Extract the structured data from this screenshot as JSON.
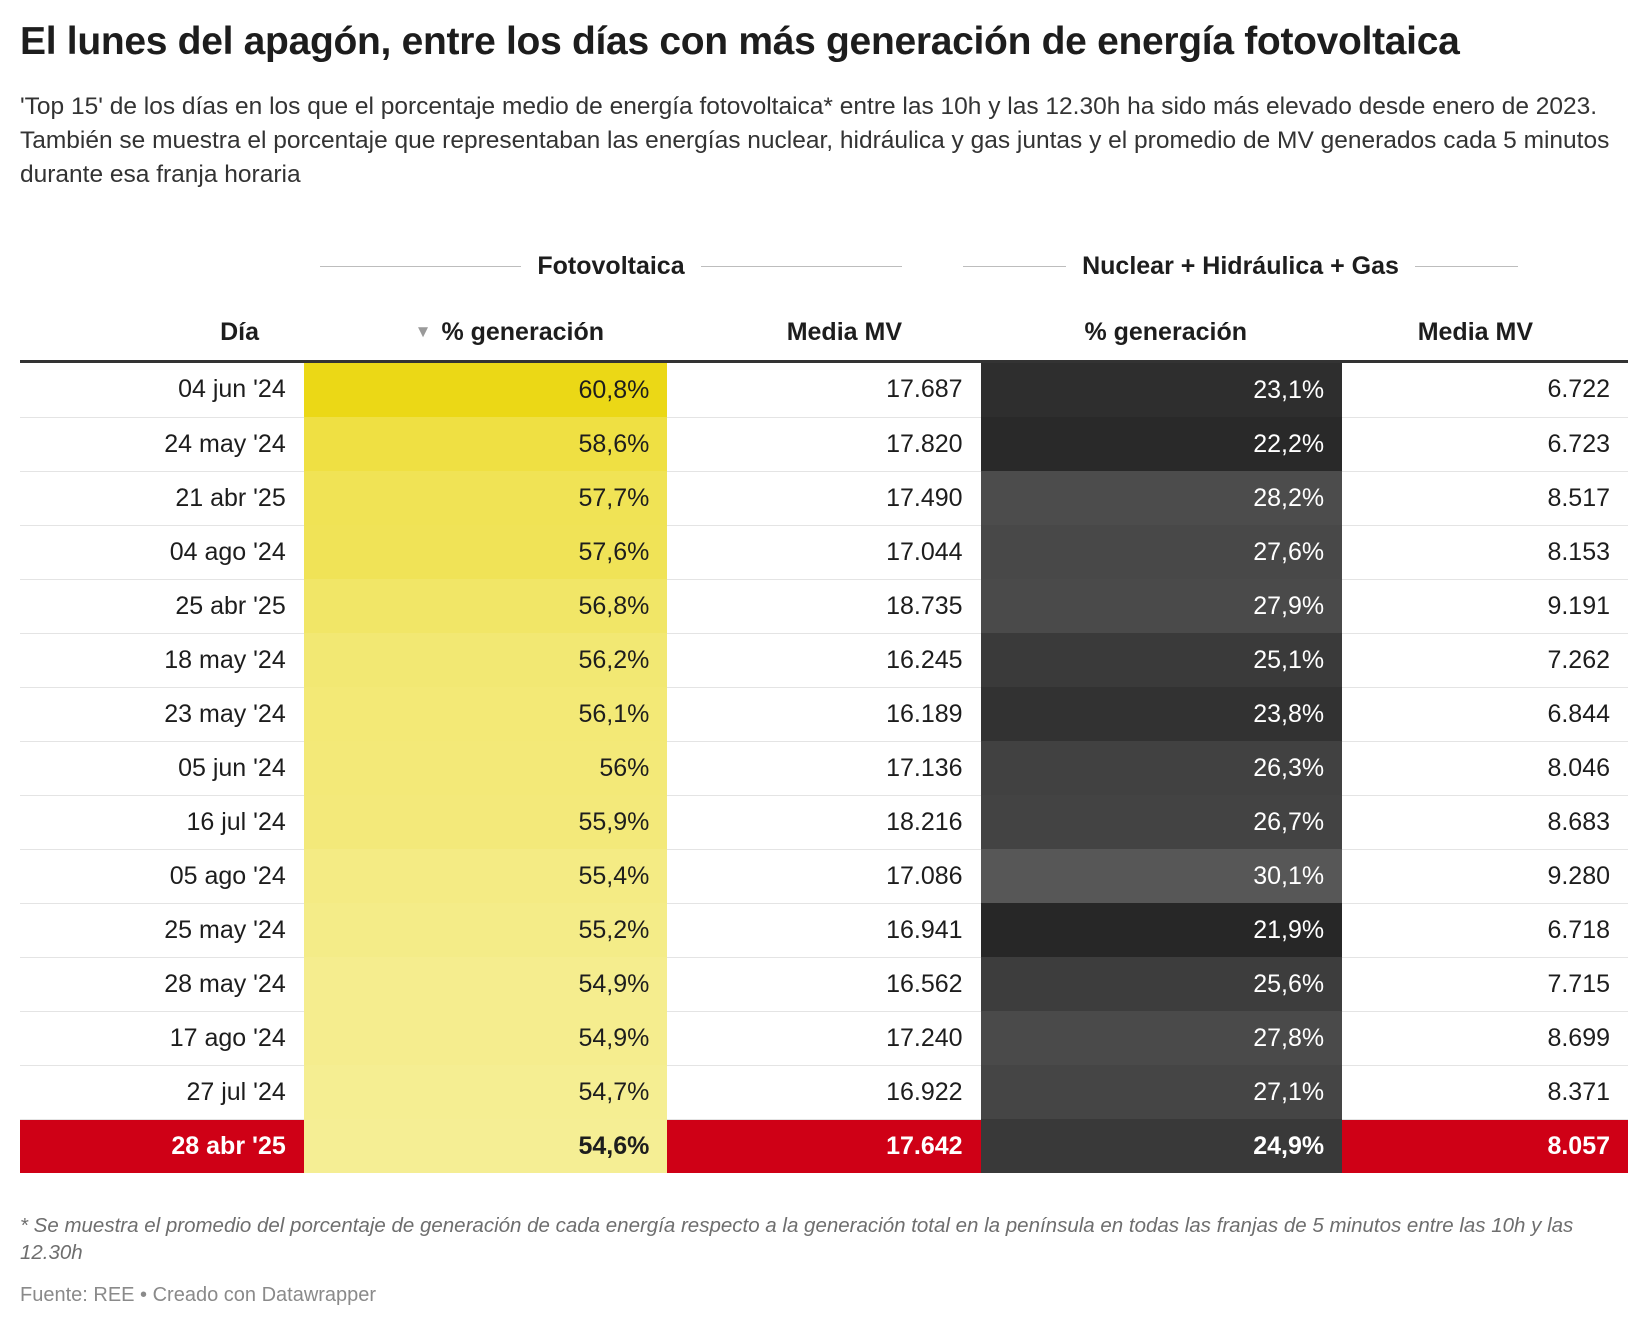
{
  "title": "El lunes del apagón, entre los días con más generación de energía fotovoltaica",
  "subtitle": "'Top 15' de los días en los que el porcentaje medio de energía fotovoltaica* entre las 10h y las 12.30h ha sido más elevado desde enero de 2023. También se muestra el porcentaje que representaban las energías nuclear, hidráulica y gas juntas y el promedio de MV generados cada 5 minutos durante esa franja horaria",
  "groups": {
    "solar": "Fotovoltaica",
    "other": "Nuclear + Hidráulica + Gas"
  },
  "columns": {
    "day": "Día",
    "solar_pct": "% generación",
    "solar_mv": "Media MV",
    "other_pct": "% generación",
    "other_mv": "Media MV",
    "sort_icon": "sort-descending-triangle"
  },
  "colors": {
    "solar_max": "#ebd816",
    "solar_min": "#f5ee94",
    "other_dark": "#272727",
    "other_light": "#575757",
    "highlight": "#cf0016"
  },
  "chart_data": {
    "type": "table",
    "sorted_by": "solar_pct",
    "sort_order": "descending",
    "rows": [
      {
        "day": "04 jun '24",
        "solar_pct": "60,8%",
        "solar_pct_value": 60.8,
        "solar_mv": "17.687",
        "other_pct": "23,1%",
        "other_pct_value": 23.1,
        "other_mv": "6.722",
        "highlight": false
      },
      {
        "day": "24 may '24",
        "solar_pct": "58,6%",
        "solar_pct_value": 58.6,
        "solar_mv": "17.820",
        "other_pct": "22,2%",
        "other_pct_value": 22.2,
        "other_mv": "6.723",
        "highlight": false
      },
      {
        "day": "21 abr '25",
        "solar_pct": "57,7%",
        "solar_pct_value": 57.7,
        "solar_mv": "17.490",
        "other_pct": "28,2%",
        "other_pct_value": 28.2,
        "other_mv": "8.517",
        "highlight": false
      },
      {
        "day": "04 ago '24",
        "solar_pct": "57,6%",
        "solar_pct_value": 57.6,
        "solar_mv": "17.044",
        "other_pct": "27,6%",
        "other_pct_value": 27.6,
        "other_mv": "8.153",
        "highlight": false
      },
      {
        "day": "25 abr '25",
        "solar_pct": "56,8%",
        "solar_pct_value": 56.8,
        "solar_mv": "18.735",
        "other_pct": "27,9%",
        "other_pct_value": 27.9,
        "other_mv": "9.191",
        "highlight": false
      },
      {
        "day": "18 may '24",
        "solar_pct": "56,2%",
        "solar_pct_value": 56.2,
        "solar_mv": "16.245",
        "other_pct": "25,1%",
        "other_pct_value": 25.1,
        "other_mv": "7.262",
        "highlight": false
      },
      {
        "day": "23 may '24",
        "solar_pct": "56,1%",
        "solar_pct_value": 56.1,
        "solar_mv": "16.189",
        "other_pct": "23,8%",
        "other_pct_value": 23.8,
        "other_mv": "6.844",
        "highlight": false
      },
      {
        "day": "05 jun '24",
        "solar_pct": "56%",
        "solar_pct_value": 56.0,
        "solar_mv": "17.136",
        "other_pct": "26,3%",
        "other_pct_value": 26.3,
        "other_mv": "8.046",
        "highlight": false
      },
      {
        "day": "16 jul '24",
        "solar_pct": "55,9%",
        "solar_pct_value": 55.9,
        "solar_mv": "18.216",
        "other_pct": "26,7%",
        "other_pct_value": 26.7,
        "other_mv": "8.683",
        "highlight": false
      },
      {
        "day": "05 ago '24",
        "solar_pct": "55,4%",
        "solar_pct_value": 55.4,
        "solar_mv": "17.086",
        "other_pct": "30,1%",
        "other_pct_value": 30.1,
        "other_mv": "9.280",
        "highlight": false
      },
      {
        "day": "25 may '24",
        "solar_pct": "55,2%",
        "solar_pct_value": 55.2,
        "solar_mv": "16.941",
        "other_pct": "21,9%",
        "other_pct_value": 21.9,
        "other_mv": "6.718",
        "highlight": false
      },
      {
        "day": "28 may '24",
        "solar_pct": "54,9%",
        "solar_pct_value": 54.9,
        "solar_mv": "16.562",
        "other_pct": "25,6%",
        "other_pct_value": 25.6,
        "other_mv": "7.715",
        "highlight": false
      },
      {
        "day": "17 ago '24",
        "solar_pct": "54,9%",
        "solar_pct_value": 54.9,
        "solar_mv": "17.240",
        "other_pct": "27,8%",
        "other_pct_value": 27.8,
        "other_mv": "8.699",
        "highlight": false
      },
      {
        "day": "27 jul '24",
        "solar_pct": "54,7%",
        "solar_pct_value": 54.7,
        "solar_mv": "16.922",
        "other_pct": "27,1%",
        "other_pct_value": 27.1,
        "other_mv": "8.371",
        "highlight": false
      },
      {
        "day": "28 abr '25",
        "solar_pct": "54,6%",
        "solar_pct_value": 54.6,
        "solar_mv": "17.642",
        "other_pct": "24,9%",
        "other_pct_value": 24.9,
        "other_mv": "8.057",
        "highlight": true
      }
    ]
  },
  "footnote": "* Se muestra el promedio del porcentaje de generación de cada energía respecto a la generación total en la península en todas las franjas de 5 minutos entre las 10h y las 12.30h",
  "source": "Fuente: REE • Creado con Datawrapper"
}
